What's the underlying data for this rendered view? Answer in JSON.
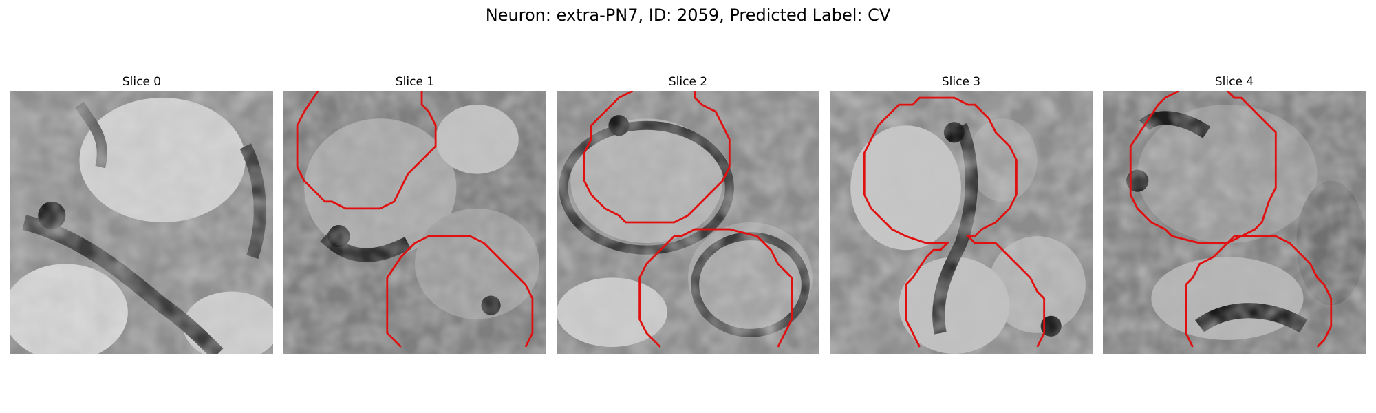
{
  "figure": {
    "title": "Neuron: extra-PN7, ID: 2059, Predicted Label: CV",
    "contour_color": "#e01010",
    "colormap": "grayscale",
    "panels": [
      {
        "title": "Slice 0"
      },
      {
        "title": "Slice 1"
      },
      {
        "title": "Slice 2"
      },
      {
        "title": "Slice 3"
      },
      {
        "title": "Slice 4"
      }
    ]
  }
}
